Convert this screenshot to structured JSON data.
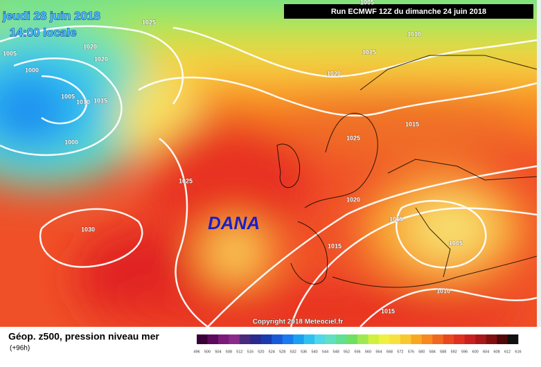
{
  "header": {
    "date": "jeudi 28 juin 2018",
    "time": "14:00 locale",
    "run": "Run ECMWF 12Z du dimanche 24 juin 2018"
  },
  "map": {
    "isobar_labels": [
      "1005",
      "1025",
      "1005",
      "1020",
      "1020",
      "1000",
      "1005",
      "1010",
      "1015",
      "1000",
      "1010",
      "1015",
      "1020",
      "1015",
      "1025",
      "1025",
      "1020",
      "1015",
      "1030",
      "1015",
      "1005",
      "1010",
      "1015"
    ],
    "annotation": "DANA",
    "copyright": "Copyright 2018 Meteociel.fr"
  },
  "footer": {
    "title": "Géop. z500, pression niveau mer",
    "lead": "(+96h)"
  },
  "legend": {
    "labels": [
      "496",
      "500",
      "504",
      "508",
      "512",
      "516",
      "520",
      "524",
      "528",
      "532",
      "536",
      "540",
      "544",
      "548",
      "552",
      "556",
      "560",
      "564",
      "568",
      "572",
      "576",
      "580",
      "584",
      "588",
      "592",
      "596",
      "600",
      "604",
      "608",
      "612",
      "616"
    ],
    "colors": [
      "#3a003a",
      "#5c0a5c",
      "#7a1a7a",
      "#8c2a8c",
      "#4a2a7a",
      "#2a2a8c",
      "#1a3ab0",
      "#1a5ad6",
      "#1a7af0",
      "#1aa0f0",
      "#30c0f0",
      "#50d8e8",
      "#60e0c0",
      "#60e090",
      "#70e060",
      "#a0e850",
      "#d0f040",
      "#f0f040",
      "#f8e040",
      "#f8c830",
      "#f8a820",
      "#f88820",
      "#f06820",
      "#e84820",
      "#e03020",
      "#c82020",
      "#a81818",
      "#801010",
      "#500808",
      "#101010"
    ]
  }
}
